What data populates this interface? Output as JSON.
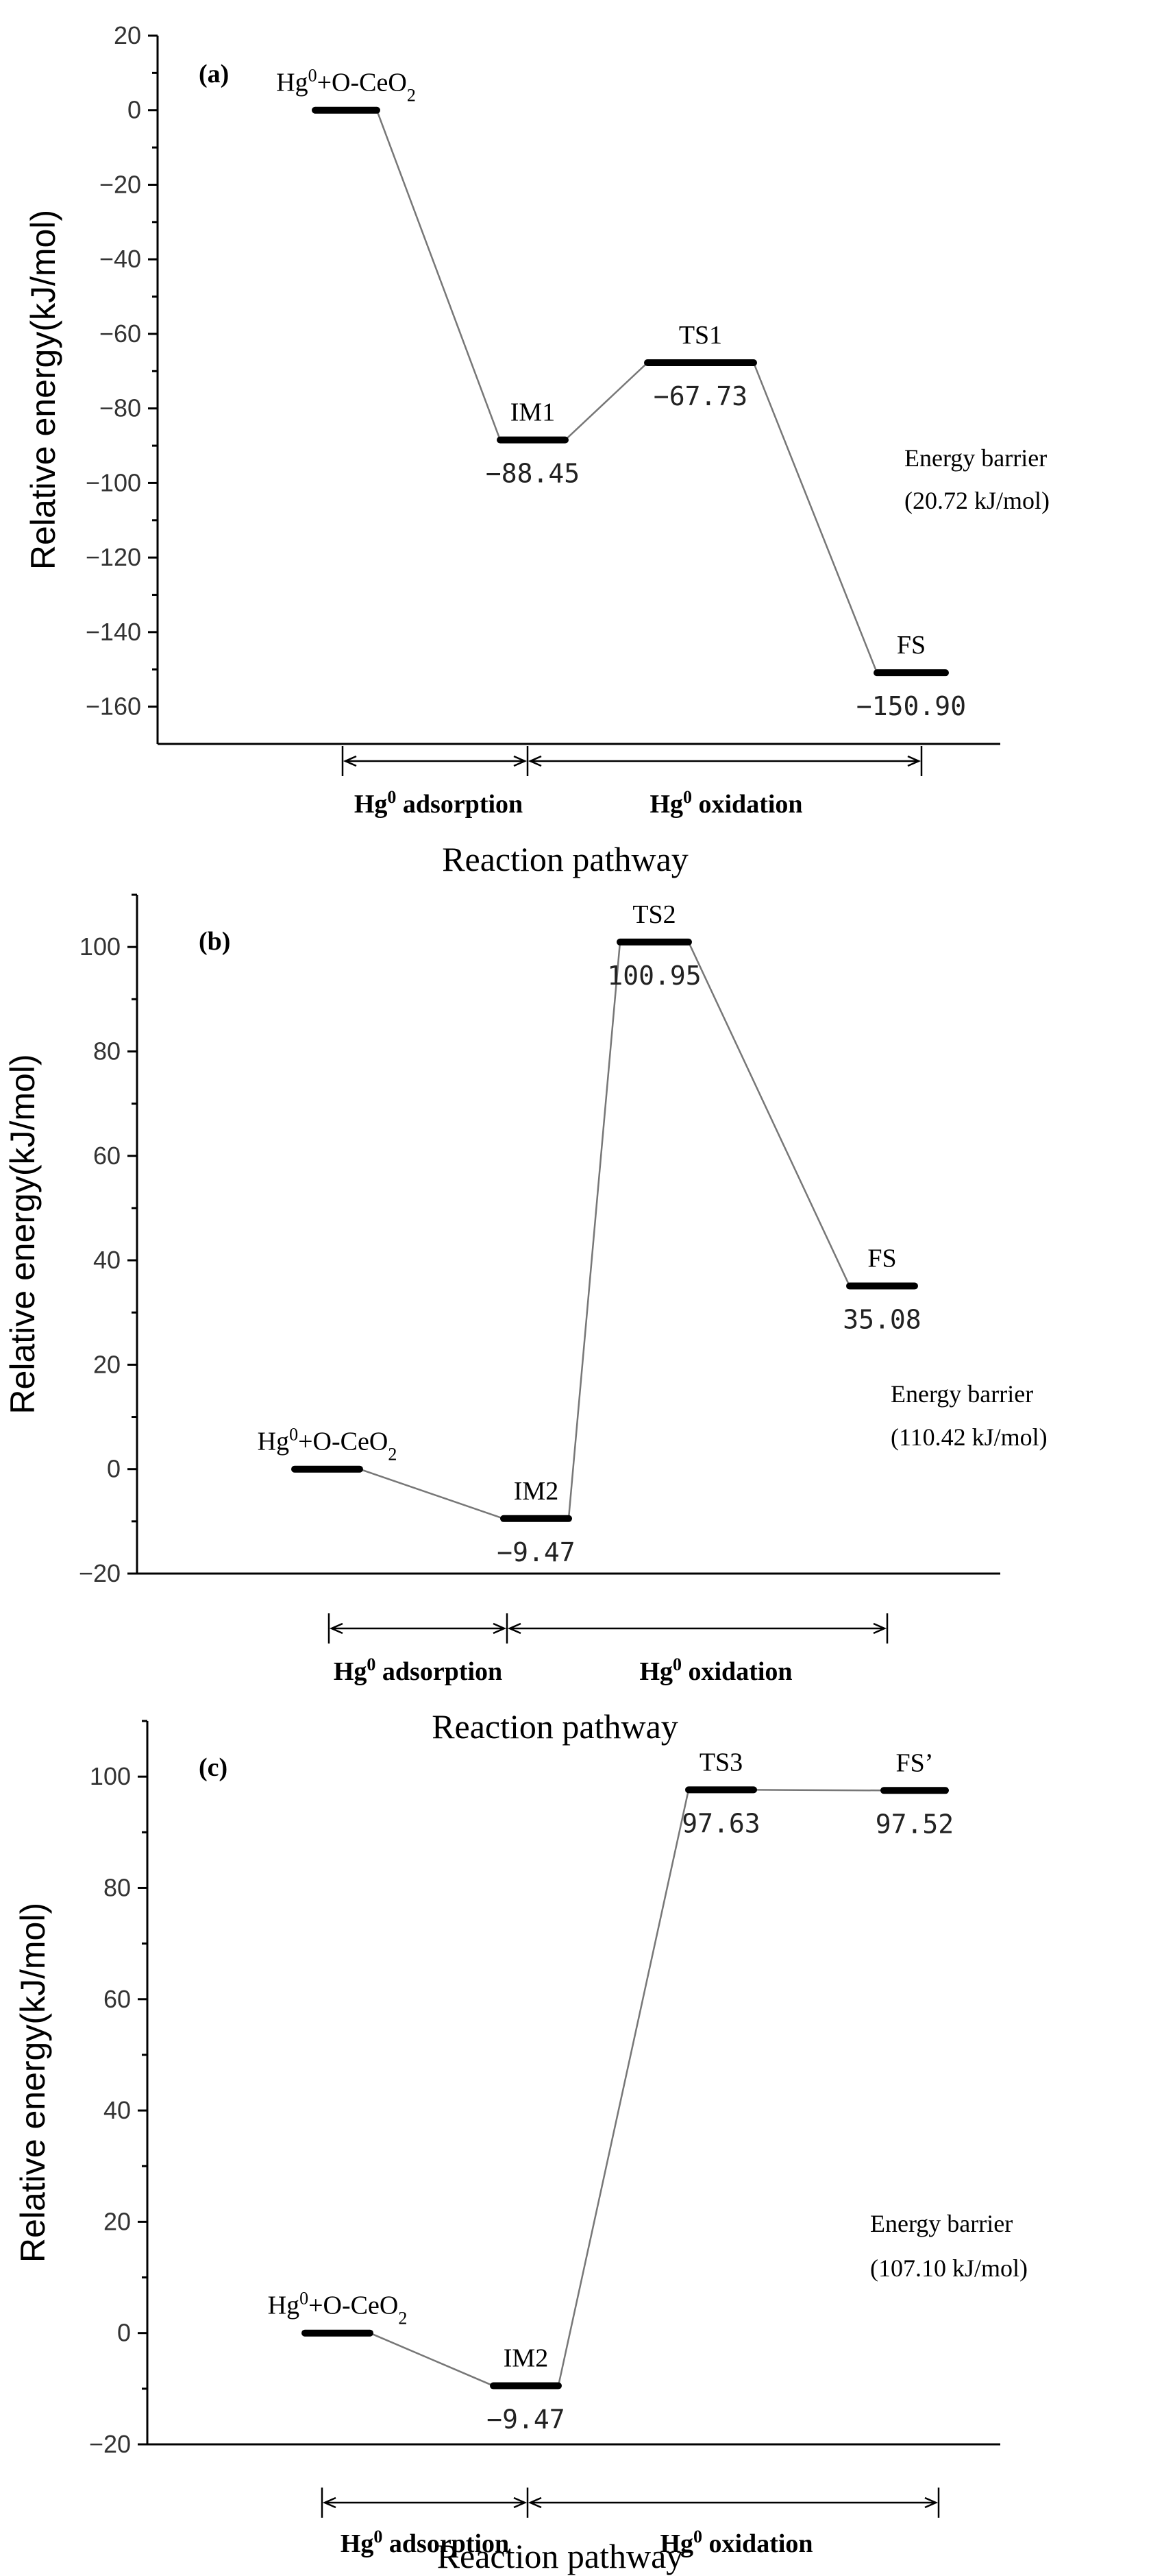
{
  "chart_data": [
    {
      "type": "line",
      "panel_label": "(a)",
      "ylabel": "Relative energy(kJ/mol)",
      "xlabel": "Reaction pathway",
      "ylim": [
        -170,
        20
      ],
      "yticks": [
        20,
        0,
        -20,
        -40,
        -60,
        -80,
        -100,
        -120,
        -140,
        -160
      ],
      "ytick_labels": [
        "20",
        "0",
        "−20",
        "−40",
        "−60",
        "−80",
        "−100",
        "−120",
        "−140",
        "−160"
      ],
      "points": [
        {
          "state": "Hg0+O-CeO2",
          "label_base": "Hg",
          "label_sup": "0",
          "label_mid": "+O-CeO",
          "label_sub": "2",
          "value": 0,
          "value_label": ""
        },
        {
          "state": "IM1",
          "label_base": "IM1",
          "label_sup": "",
          "label_mid": "",
          "label_sub": "",
          "value": -88.45,
          "value_label": "−88.45"
        },
        {
          "state": "TS1",
          "label_base": "TS1",
          "label_sup": "",
          "label_mid": "",
          "label_sub": "",
          "value": -67.73,
          "value_label": "−67.73"
        },
        {
          "state": "FS",
          "label_base": "FS",
          "label_sup": "",
          "label_mid": "",
          "label_sub": "",
          "value": -150.9,
          "value_label": "−150.90"
        }
      ],
      "barrier_lines": [
        "Energy barrier",
        "(20.72 kJ/mol)"
      ],
      "stages": [
        {
          "base": "Hg",
          "sup": "0",
          "rest": " adsorption"
        },
        {
          "base": "Hg",
          "sup": "0",
          "rest": " oxidation"
        }
      ]
    },
    {
      "type": "line",
      "panel_label": "(b)",
      "ylabel": "Relative energy(kJ/mol)",
      "xlabel": "Reaction pathway",
      "ylim": [
        -20,
        110
      ],
      "yticks": [
        100,
        80,
        60,
        40,
        20,
        0,
        -20
      ],
      "ytick_labels": [
        "100",
        "80",
        "60",
        "40",
        "20",
        "0",
        "−20"
      ],
      "points": [
        {
          "state": "Hg0+O-CeO2",
          "label_base": "Hg",
          "label_sup": "0",
          "label_mid": "+O-CeO",
          "label_sub": "2",
          "value": 0,
          "value_label": ""
        },
        {
          "state": "IM2",
          "label_base": "IM2",
          "label_sup": "",
          "label_mid": "",
          "label_sub": "",
          "value": -9.47,
          "value_label": "−9.47"
        },
        {
          "state": "TS2",
          "label_base": "TS2",
          "label_sup": "",
          "label_mid": "",
          "label_sub": "",
          "value": 100.95,
          "value_label": "100.95"
        },
        {
          "state": "FS",
          "label_base": "FS",
          "label_sup": "",
          "label_mid": "",
          "label_sub": "",
          "value": 35.08,
          "value_label": "35.08"
        }
      ],
      "barrier_lines": [
        "Energy barrier",
        "(110.42 kJ/mol)"
      ],
      "stages": [
        {
          "base": "Hg",
          "sup": "0",
          "rest": " adsorption"
        },
        {
          "base": "Hg",
          "sup": "0",
          "rest": " oxidation"
        }
      ]
    },
    {
      "type": "line",
      "panel_label": "(c)",
      "ylabel": "Relative energy(kJ/mol)",
      "xlabel": "Reaction pathway",
      "ylim": [
        -20,
        110
      ],
      "yticks": [
        100,
        80,
        60,
        40,
        20,
        0,
        -20
      ],
      "ytick_labels": [
        "100",
        "80",
        "60",
        "40",
        "20",
        "0",
        "−20"
      ],
      "points": [
        {
          "state": "Hg0+O-CeO2",
          "label_base": "Hg",
          "label_sup": "0",
          "label_mid": "+O-CeO",
          "label_sub": "2",
          "value": 0,
          "value_label": ""
        },
        {
          "state": "IM2",
          "label_base": "IM2",
          "label_sup": "",
          "label_mid": "",
          "label_sub": "",
          "value": -9.47,
          "value_label": "−9.47"
        },
        {
          "state": "TS3",
          "label_base": "TS3",
          "label_sup": "",
          "label_mid": "",
          "label_sub": "",
          "value": 97.63,
          "value_label": "97.63"
        },
        {
          "state": "FS’",
          "label_base": "FS’",
          "label_sup": "",
          "label_mid": "",
          "label_sub": "",
          "value": 97.52,
          "value_label": "97.52"
        }
      ],
      "barrier_lines": [
        "Energy barrier",
        "(107.10 kJ/mol)"
      ],
      "stages": [
        {
          "base": "Hg",
          "sup": "0",
          "rest": " adsorption"
        },
        {
          "base": "Hg",
          "sup": "0",
          "rest": " oxidation"
        }
      ]
    }
  ]
}
